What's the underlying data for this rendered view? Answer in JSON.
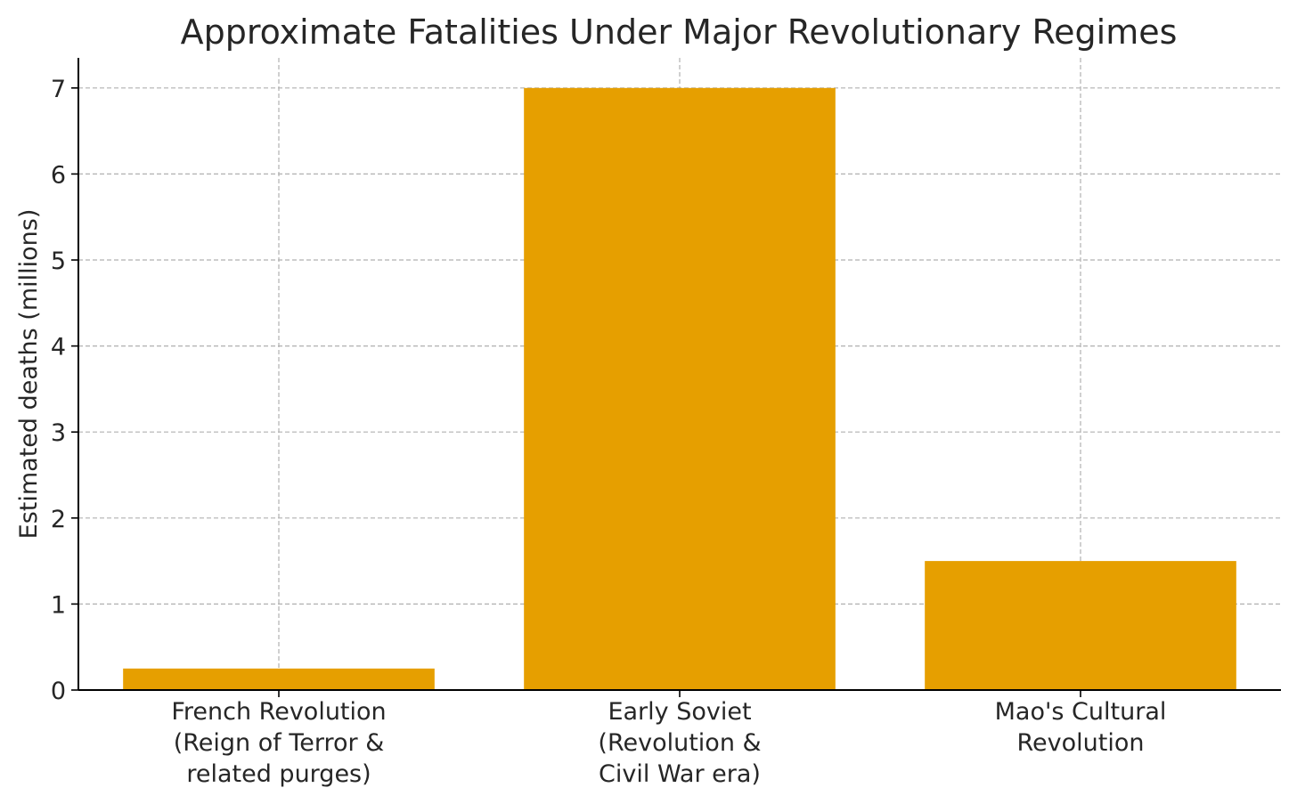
{
  "chart_data": {
    "type": "bar",
    "title": "Approximate Fatalities Under Major Revolutionary Regimes",
    "xlabel": "",
    "ylabel": "Estimated deaths (millions)",
    "categories": [
      [
        "French Revolution",
        "(Reign of Terror &",
        "related purges)"
      ],
      [
        "Early Soviet",
        "(Revolution &",
        "Civil War era)"
      ],
      [
        "Mao's Cultural",
        "Revolution"
      ]
    ],
    "values": [
      0.25,
      7.0,
      1.5
    ],
    "ylim": [
      0,
      7.35
    ],
    "yticks": [
      0,
      1,
      2,
      3,
      4,
      5,
      6,
      7
    ],
    "grid": true,
    "bar_color": "#e69f00"
  }
}
